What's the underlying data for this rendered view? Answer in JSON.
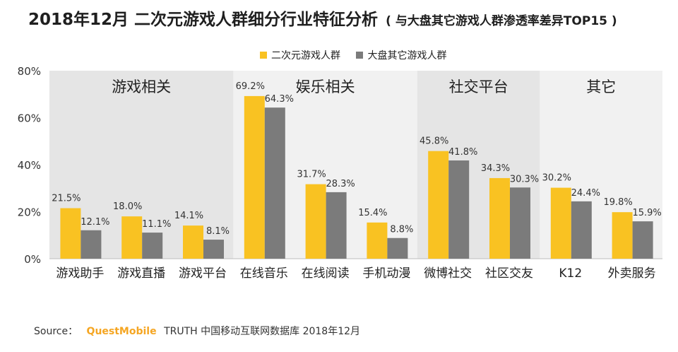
{
  "header": {
    "title": "2018年12月 二次元游戏人群细分行业特征分析",
    "subtitle": "( 与大盘其它游戏人群渗透率差异TOP15 )"
  },
  "source": {
    "prefix": "Source：",
    "brand": "QuestMobile",
    "text": "TRUTH 中国移动互联网数据库 2018年12月"
  },
  "colors": {
    "series1": "#F9C222",
    "series2": "#7B7B7B",
    "group_dark": "#E5E5E5",
    "group_light": "#F1F1F1"
  },
  "chart_data": {
    "type": "bar",
    "ylim": [
      0,
      80
    ],
    "yticks": [
      "0%",
      "20%",
      "40%",
      "60%",
      "80%"
    ],
    "legend_position": "top-center",
    "groups": [
      {
        "label": "游戏相关",
        "categories": [
          "游戏助手",
          "游戏直播",
          "游戏平台"
        ]
      },
      {
        "label": "娱乐相关",
        "categories": [
          "在线音乐",
          "在线阅读",
          "手机动漫"
        ]
      },
      {
        "label": "社交平台",
        "categories": [
          "微博社交",
          "社区交友"
        ]
      },
      {
        "label": "其它",
        "categories": [
          "K12",
          "外卖服务"
        ]
      }
    ],
    "categories": [
      "游戏助手",
      "游戏直播",
      "游戏平台",
      "在线音乐",
      "在线阅读",
      "手机动漫",
      "微博社交",
      "社区交友",
      "K12",
      "外卖服务"
    ],
    "series": [
      {
        "name": "二次元游戏人群",
        "values": [
          21.5,
          18.0,
          14.1,
          69.2,
          31.7,
          15.4,
          45.8,
          34.3,
          30.2,
          19.8
        ],
        "labels": [
          "21.5%",
          "18.0%",
          "14.1%",
          "69.2%",
          "31.7%",
          "15.4%",
          "45.8%",
          "34.3%",
          "30.2%",
          "19.8%"
        ]
      },
      {
        "name": "大盘其它游戏人群",
        "values": [
          12.1,
          11.1,
          8.1,
          64.3,
          28.3,
          8.8,
          41.8,
          30.3,
          24.4,
          15.9
        ],
        "labels": [
          "12.1%",
          "11.1%",
          "8.1%",
          "64.3%",
          "28.3%",
          "8.8%",
          "41.8%",
          "30.3%",
          "24.4%",
          "15.9%"
        ]
      }
    ]
  }
}
